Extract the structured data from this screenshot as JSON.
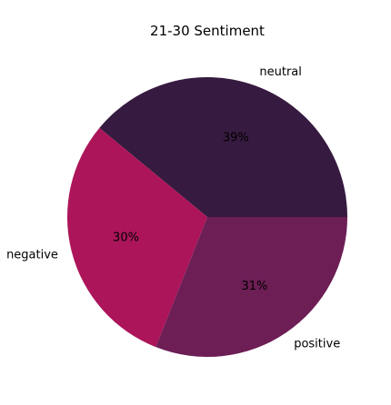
{
  "chart_data": {
    "type": "pie",
    "title": "21-30 Sentiment",
    "slices": [
      {
        "label": "neutral",
        "value": 39,
        "pct_label": "39%",
        "color": "#361a3f"
      },
      {
        "label": "negative",
        "value": 30,
        "pct_label": "30%",
        "color": "#ac155a"
      },
      {
        "label": "positive",
        "value": 31,
        "pct_label": "31%",
        "color": "#6d1e55"
      }
    ],
    "start_angle_deg": 0,
    "direction": "counterclockwise",
    "legend": "none"
  }
}
